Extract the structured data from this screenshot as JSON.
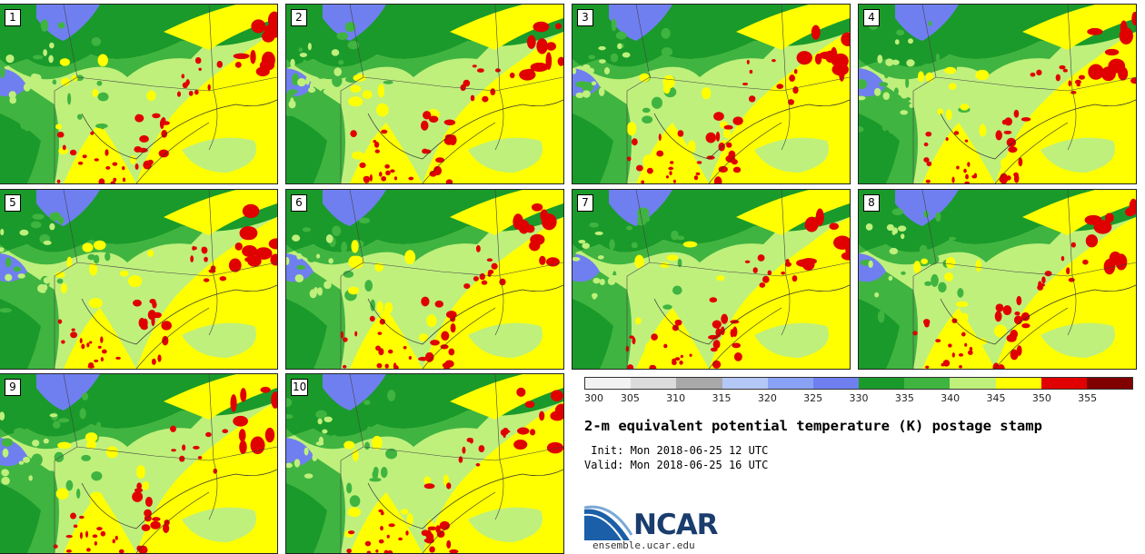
{
  "panels": [
    "1",
    "2",
    "3",
    "4",
    "5",
    "6",
    "7",
    "8",
    "9",
    "10"
  ],
  "colorbar": {
    "ticks": [
      "300",
      "305",
      "310",
      "315",
      "320",
      "325",
      "330",
      "335",
      "340",
      "345",
      "350",
      "355"
    ],
    "colors": [
      "#f2f2f2",
      "#dcdcdc",
      "#a9a9a9",
      "#b4c8f7",
      "#8aa2f6",
      "#6f7ff0",
      "#1a9a2a",
      "#40b440",
      "#bff07c",
      "#ffff00",
      "#e00000",
      "#800000"
    ]
  },
  "title": "2-m equivalent potential temperature (K) postage stamp",
  "init": " Init: Mon 2018-06-25 12 UTC",
  "valid": "Valid: Mon 2018-06-25 16 UTC",
  "logo": {
    "name": "NCAR",
    "url": "ensemble.ucar.edu"
  },
  "colors": {
    "water": "#6f7ff0",
    "dark_green": "#1a9a2a",
    "green": "#40b440",
    "light_green": "#bff07c",
    "yellow": "#ffff00",
    "red": "#e00000"
  }
}
